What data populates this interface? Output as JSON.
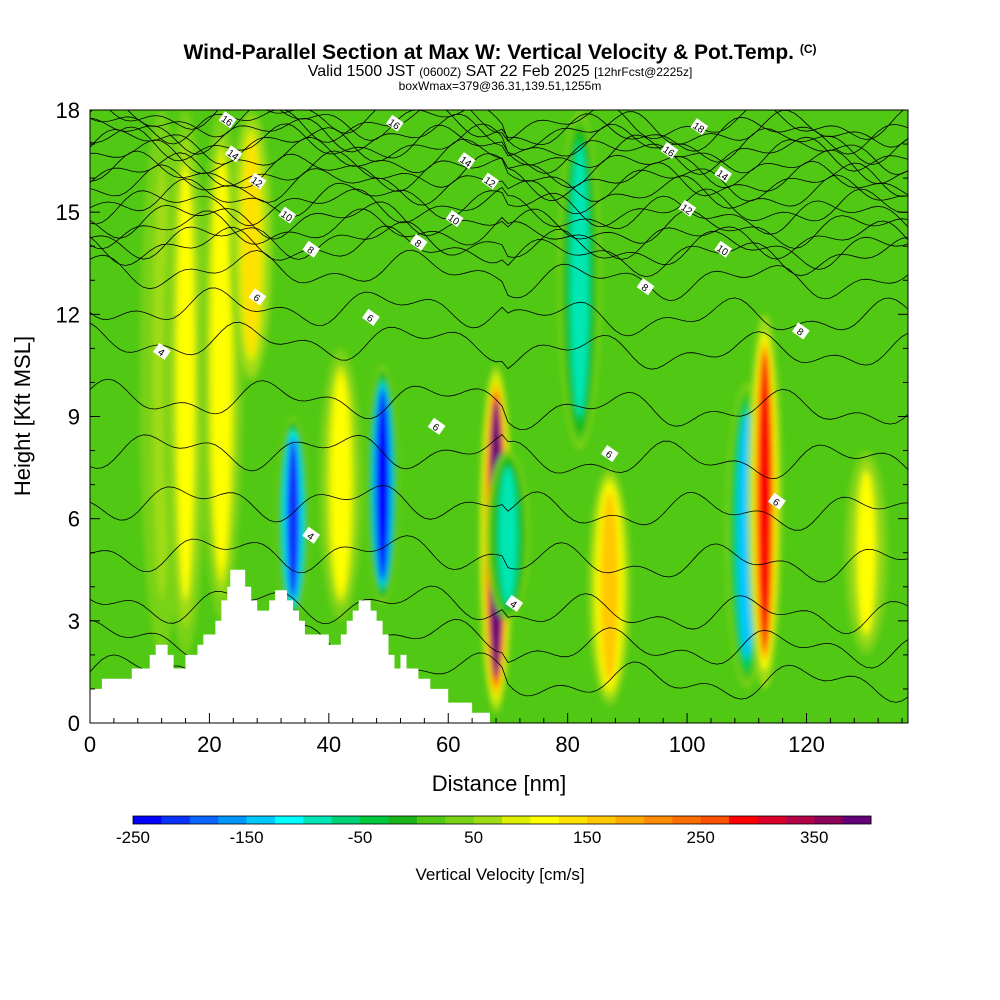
{
  "title": {
    "main": "Wind-Parallel Section at Max W: Vertical Velocity & Pot.Temp.",
    "copyright": "(C)",
    "line2_a": "Valid 1500 JST",
    "line2_b": "(0600Z)",
    "line2_c": "SAT 22 Feb 2025",
    "line2_d": "[12hrFcst@2225z]",
    "line3": "boxWmax=379@36.31,139.51,1255m"
  },
  "chart_data": {
    "type": "heatmap",
    "xlabel": "Distance [nm]",
    "ylabel": "Height [Kft MSL]",
    "xlim": [
      0,
      137
    ],
    "ylim": [
      0,
      18
    ],
    "x_ticks": [
      0,
      20,
      40,
      60,
      80,
      100,
      120
    ],
    "y_ticks": [
      0,
      3,
      6,
      9,
      12,
      15,
      18
    ],
    "colorbar": {
      "label": "Vertical Velocity [cm/s]",
      "range": [
        -250,
        400
      ],
      "ticks": [
        -250,
        -150,
        -50,
        50,
        150,
        250,
        350
      ],
      "colors": [
        "#0000ff",
        "#0a32ff",
        "#0a64ff",
        "#0096ff",
        "#00c8ff",
        "#00ffff",
        "#00e6b4",
        "#00d278",
        "#00c83c",
        "#19b419",
        "#50c814",
        "#78d214",
        "#a0dc14",
        "#dcf000",
        "#ffff00",
        "#ffe100",
        "#ffc800",
        "#ffaa00",
        "#ff8c00",
        "#ff6e00",
        "#ff5000",
        "#ff0000",
        "#dc0028",
        "#b40046",
        "#8c005a",
        "#640078"
      ]
    },
    "vertical_velocity_features": [
      {
        "x": 12,
        "z_range": [
          2,
          18
        ],
        "w": 60
      },
      {
        "x": 16,
        "z_range": [
          2,
          18
        ],
        "w": 100
      },
      {
        "x": 22,
        "z_range": [
          3,
          18
        ],
        "w": 110
      },
      {
        "x": 27,
        "z_range": [
          10,
          18
        ],
        "w": 130
      },
      {
        "x": 34,
        "z_range": [
          3,
          9
        ],
        "w": -210
      },
      {
        "x": 42,
        "z_range": [
          3,
          11
        ],
        "w": 110
      },
      {
        "x": 49,
        "z_range": [
          3.5,
          10.5
        ],
        "w": -250
      },
      {
        "x": 68,
        "z_range": [
          0.3,
          10.5
        ],
        "w": 380
      },
      {
        "x": 70,
        "z_range": [
          3,
          8
        ],
        "w": -80
      },
      {
        "x": 82,
        "z_range": [
          8,
          18
        ],
        "w": -90
      },
      {
        "x": 87,
        "z_range": [
          0.5,
          7.5
        ],
        "w": 170
      },
      {
        "x": 110,
        "z_range": [
          1,
          10
        ],
        "w": -130
      },
      {
        "x": 113,
        "z_range": [
          1,
          12
        ],
        "w": 280
      },
      {
        "x": 130,
        "z_range": [
          2,
          8
        ],
        "w": 100
      }
    ],
    "theta_contours": [
      {
        "label": "4",
        "base_height": [
          1.5,
          2.5,
          3.5,
          5,
          6.5,
          8
        ]
      },
      {
        "label": "6",
        "base_height": [
          9.5,
          11.2,
          12.2
        ]
      },
      {
        "label": "8",
        "base_height": [
          13.3,
          14,
          14.5
        ]
      },
      {
        "label": "10",
        "base_height": [
          14.2,
          14.8,
          15.2
        ]
      },
      {
        "label": "12",
        "base_height": [
          15.4,
          15.8,
          16.2
        ]
      },
      {
        "label": "14",
        "base_height": [
          16.2,
          16.6,
          17
        ]
      },
      {
        "label": "16",
        "base_height": [
          17,
          17.3,
          17.6
        ]
      },
      {
        "label": "18",
        "base_height": [
          17.7,
          17.9
        ]
      }
    ],
    "contour_labels": [
      {
        "text": "16",
        "x": 23,
        "z": 17.7
      },
      {
        "text": "14",
        "x": 24,
        "z": 16.7
      },
      {
        "text": "12",
        "x": 28,
        "z": 15.9
      },
      {
        "text": "10",
        "x": 33,
        "z": 14.9
      },
      {
        "text": "8",
        "x": 37,
        "z": 13.9
      },
      {
        "text": "6",
        "x": 28,
        "z": 12.5
      },
      {
        "text": "4",
        "x": 12,
        "z": 10.9
      },
      {
        "text": "16",
        "x": 51,
        "z": 17.6
      },
      {
        "text": "14",
        "x": 63,
        "z": 16.5
      },
      {
        "text": "12",
        "x": 67,
        "z": 15.9
      },
      {
        "text": "10",
        "x": 61,
        "z": 14.8
      },
      {
        "text": "8",
        "x": 55,
        "z": 14.1
      },
      {
        "text": "6",
        "x": 47,
        "z": 11.9
      },
      {
        "text": "6",
        "x": 58,
        "z": 8.7
      },
      {
        "text": "4",
        "x": 37,
        "z": 5.5
      },
      {
        "text": "4",
        "x": 71,
        "z": 3.5
      },
      {
        "text": "6",
        "x": 87,
        "z": 7.9
      },
      {
        "text": "8",
        "x": 93,
        "z": 12.8
      },
      {
        "text": "18",
        "x": 102,
        "z": 17.5
      },
      {
        "text": "16",
        "x": 97,
        "z": 16.8
      },
      {
        "text": "14",
        "x": 106,
        "z": 16.1
      },
      {
        "text": "12",
        "x": 100,
        "z": 15.1
      },
      {
        "text": "10",
        "x": 106,
        "z": 13.9
      },
      {
        "text": "8",
        "x": 119,
        "z": 11.5
      },
      {
        "text": "6",
        "x": 115,
        "z": 6.5
      }
    ],
    "terrain": [
      [
        0,
        0
      ],
      [
        0,
        1
      ],
      [
        2,
        1
      ],
      [
        2,
        1.3
      ],
      [
        7,
        1.3
      ],
      [
        7,
        1.6
      ],
      [
        10,
        1.6
      ],
      [
        10,
        2
      ],
      [
        11,
        2
      ],
      [
        11,
        2.3
      ],
      [
        13,
        2.3
      ],
      [
        13,
        2
      ],
      [
        14,
        2
      ],
      [
        14,
        1.6
      ],
      [
        16,
        1.6
      ],
      [
        16,
        2
      ],
      [
        18,
        2
      ],
      [
        18,
        2.3
      ],
      [
        19,
        2.3
      ],
      [
        19,
        2.6
      ],
      [
        21,
        2.6
      ],
      [
        21,
        3
      ],
      [
        22,
        3
      ],
      [
        22,
        3.6
      ],
      [
        23,
        3.6
      ],
      [
        23,
        4
      ],
      [
        23.5,
        4
      ],
      [
        23.5,
        4.5
      ],
      [
        26,
        4.5
      ],
      [
        26,
        4
      ],
      [
        27,
        4
      ],
      [
        27,
        3.6
      ],
      [
        28,
        3.6
      ],
      [
        28,
        3.3
      ],
      [
        30,
        3.3
      ],
      [
        30,
        3.6
      ],
      [
        31,
        3.6
      ],
      [
        31,
        3.9
      ],
      [
        33,
        3.9
      ],
      [
        33,
        3.6
      ],
      [
        34,
        3.6
      ],
      [
        34,
        3.3
      ],
      [
        35,
        3.3
      ],
      [
        35,
        3
      ],
      [
        36,
        3
      ],
      [
        36,
        2.6
      ],
      [
        40,
        2.6
      ],
      [
        40,
        2.3
      ],
      [
        42,
        2.3
      ],
      [
        42,
        2.6
      ],
      [
        43,
        2.6
      ],
      [
        43,
        3
      ],
      [
        44,
        3
      ],
      [
        44,
        3.3
      ],
      [
        45,
        3.3
      ],
      [
        45,
        3.6
      ],
      [
        47,
        3.6
      ],
      [
        47,
        3.3
      ],
      [
        48,
        3.3
      ],
      [
        48,
        3
      ],
      [
        49,
        3
      ],
      [
        49,
        2.6
      ],
      [
        50,
        2.6
      ],
      [
        50,
        2
      ],
      [
        51,
        2
      ],
      [
        51,
        1.6
      ],
      [
        52,
        1.6
      ],
      [
        52,
        2
      ],
      [
        53,
        2
      ],
      [
        53,
        1.6
      ],
      [
        55,
        1.6
      ],
      [
        55,
        1.3
      ],
      [
        57,
        1.3
      ],
      [
        57,
        1
      ],
      [
        60,
        1
      ],
      [
        60,
        0.6
      ],
      [
        64,
        0.6
      ],
      [
        64,
        0.3
      ],
      [
        67,
        0.3
      ],
      [
        67,
        0
      ]
    ]
  },
  "ylabel_text": "Height [Kft MSL]",
  "xlabel_text": "Distance [nm]",
  "colorbar_label_text": "Vertical Velocity [cm/s]"
}
